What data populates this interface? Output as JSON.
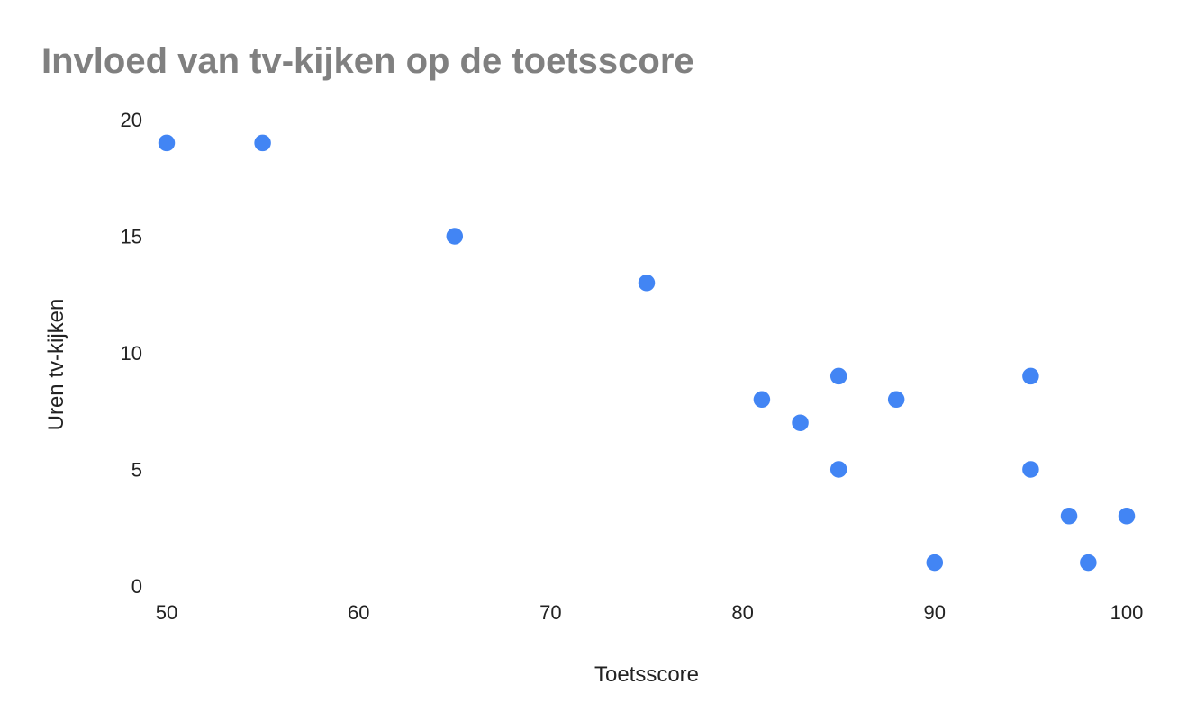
{
  "chart_data": {
    "type": "scatter",
    "title": "Invloed van tv-kijken op de toetsscore",
    "xlabel": "Toetsscore",
    "ylabel": "Uren tv-kijken",
    "xlim": [
      50,
      100
    ],
    "ylim": [
      0,
      20
    ],
    "x_ticks": [
      50,
      60,
      70,
      80,
      90,
      100
    ],
    "y_ticks": [
      0,
      5,
      10,
      15,
      20
    ],
    "grid": false,
    "legend": "none",
    "point_color": "#4285f4",
    "points": [
      {
        "x": 50,
        "y": 19
      },
      {
        "x": 55,
        "y": 19
      },
      {
        "x": 65,
        "y": 15
      },
      {
        "x": 75,
        "y": 13
      },
      {
        "x": 81,
        "y": 8
      },
      {
        "x": 83,
        "y": 7
      },
      {
        "x": 85,
        "y": 9
      },
      {
        "x": 85,
        "y": 5
      },
      {
        "x": 88,
        "y": 8
      },
      {
        "x": 90,
        "y": 1
      },
      {
        "x": 95,
        "y": 9
      },
      {
        "x": 95,
        "y": 5
      },
      {
        "x": 97,
        "y": 3
      },
      {
        "x": 98,
        "y": 1
      },
      {
        "x": 100,
        "y": 3
      }
    ]
  }
}
